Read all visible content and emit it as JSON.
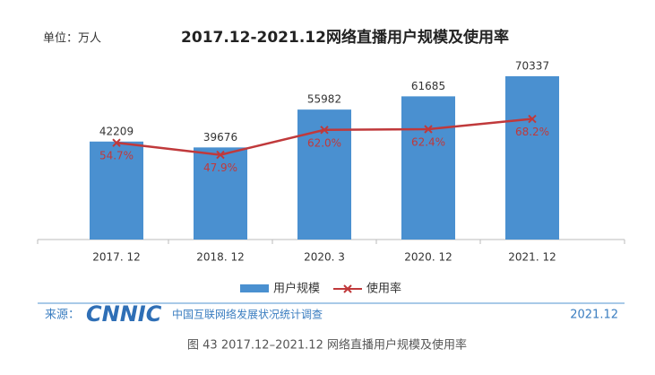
{
  "chart_data": {
    "type": "bar_line",
    "title": "2017.12-2021.12网络直播用户规模及使用率",
    "y_label": "单位：万人",
    "categories": [
      "2017. 12",
      "2018. 12",
      "2020. 3",
      "2020. 12",
      "2021. 12"
    ],
    "series": [
      {
        "name": "用户规模",
        "type": "bar",
        "color": "#4a90d0",
        "values": [
          42209,
          39676,
          55982,
          61685,
          70337
        ]
      },
      {
        "name": "使用率",
        "type": "line",
        "axis": "y2",
        "color": "#c0393b",
        "values": [
          54.7,
          47.9,
          62.0,
          62.4,
          68.2
        ],
        "value_labels": [
          "54.7%",
          "47.9%",
          "62.0%",
          "62.4%",
          "68.2%"
        ]
      }
    ],
    "ylim": [
      0,
      80000
    ],
    "y2lim": [
      0,
      105
    ],
    "grid": false,
    "legend": "bottom"
  },
  "source": {
    "label": "来源：",
    "logo": "CNNIC",
    "text": "中国互联网络发展状况统计调查",
    "date": "2021.12"
  },
  "caption": "图 43  2017.12–2021.12 网络直播用户规模及使用率"
}
